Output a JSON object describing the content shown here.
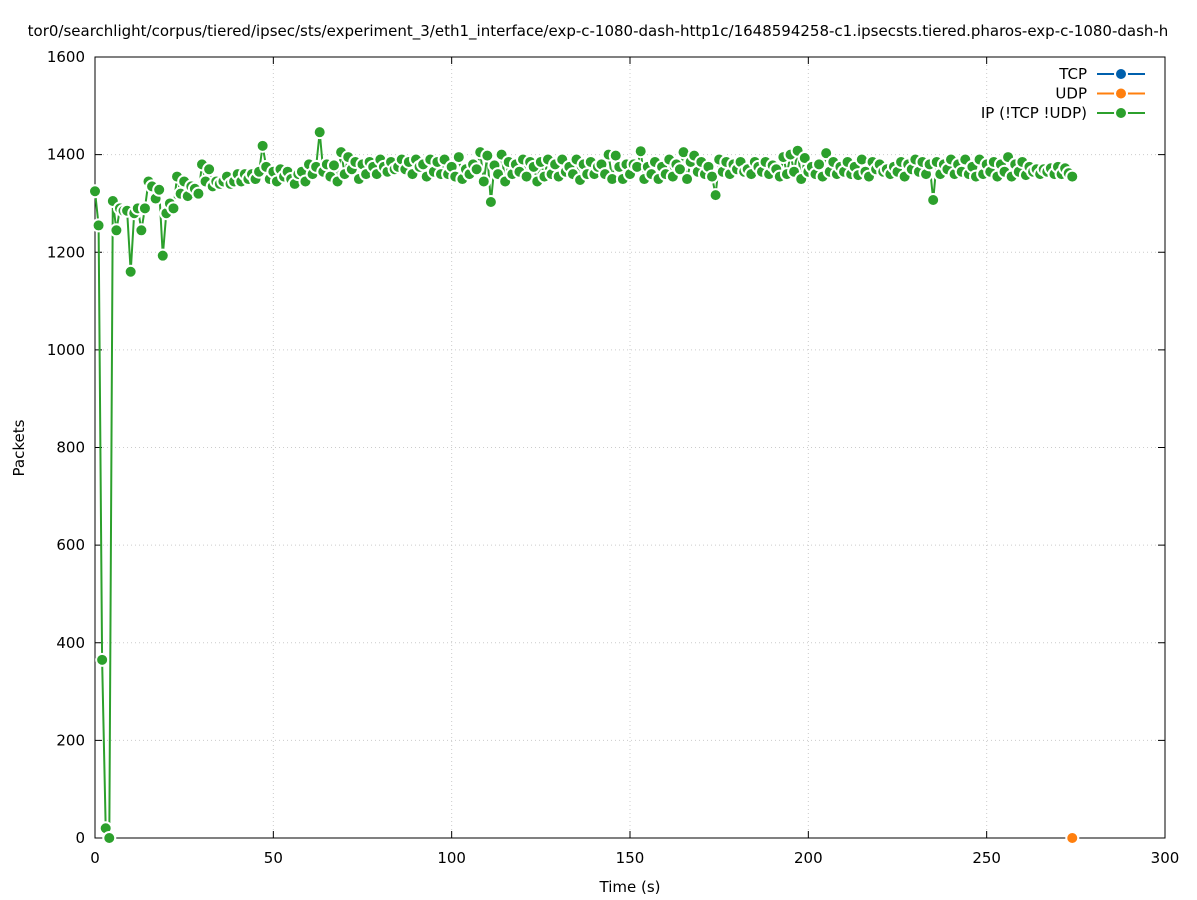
{
  "chart_data": {
    "type": "line",
    "title": "tor0/searchlight/corpus/tiered/ipsec/sts/experiment_3/eth1_interface/exp-c-1080-dash-http1c/1648594258-c1.ipsecsts.tiered.pharos-exp-c-1080-dash-h",
    "xlabel": "Time (s)",
    "ylabel": "Packets",
    "xlim": [
      0,
      300
    ],
    "ylim": [
      0,
      1600
    ],
    "x_ticks": [
      "0",
      "50",
      "100",
      "150",
      "200",
      "250",
      "300"
    ],
    "y_ticks": [
      "0",
      "200",
      "400",
      "600",
      "800",
      "1000",
      "1200",
      "1400",
      "1600"
    ],
    "grid": true,
    "legend_position": "top-right",
    "series": [
      {
        "name": "TCP",
        "color": "#0060ad",
        "points": []
      },
      {
        "name": "UDP",
        "color": "#ff7f0e",
        "points": [
          [
            274,
            0
          ]
        ]
      },
      {
        "name": "IP (!TCP  !UDP)",
        "color": "#2ca02c",
        "points": [
          [
            0,
            1325
          ],
          [
            1,
            1255
          ],
          [
            2,
            365
          ],
          [
            3,
            20
          ],
          [
            4,
            0
          ],
          [
            5,
            1305
          ],
          [
            6,
            1245
          ],
          [
            7,
            1290
          ],
          [
            8,
            1285
          ],
          [
            9,
            1285
          ],
          [
            10,
            1160
          ],
          [
            11,
            1280
          ],
          [
            12,
            1290
          ],
          [
            13,
            1245
          ],
          [
            14,
            1290
          ],
          [
            15,
            1345
          ],
          [
            16,
            1335
          ],
          [
            17,
            1310
          ],
          [
            18,
            1328
          ],
          [
            19,
            1193
          ],
          [
            20,
            1280
          ],
          [
            21,
            1300
          ],
          [
            22,
            1290
          ],
          [
            23,
            1355
          ],
          [
            24,
            1320
          ],
          [
            25,
            1345
          ],
          [
            26,
            1315
          ],
          [
            27,
            1335
          ],
          [
            28,
            1330
          ],
          [
            29,
            1320
          ],
          [
            30,
            1380
          ],
          [
            31,
            1345
          ],
          [
            32,
            1370
          ],
          [
            33,
            1335
          ],
          [
            34,
            1345
          ],
          [
            35,
            1340
          ],
          [
            36,
            1345
          ],
          [
            37,
            1355
          ],
          [
            38,
            1340
          ],
          [
            39,
            1345
          ],
          [
            40,
            1360
          ],
          [
            41,
            1345
          ],
          [
            42,
            1360
          ],
          [
            43,
            1350
          ],
          [
            44,
            1360
          ],
          [
            45,
            1350
          ],
          [
            46,
            1365
          ],
          [
            47,
            1418
          ],
          [
            48,
            1375
          ],
          [
            49,
            1350
          ],
          [
            50,
            1365
          ],
          [
            51,
            1345
          ],
          [
            52,
            1370
          ],
          [
            53,
            1355
          ],
          [
            54,
            1365
          ],
          [
            55,
            1350
          ],
          [
            56,
            1340
          ],
          [
            57,
            1360
          ],
          [
            58,
            1365
          ],
          [
            59,
            1345
          ],
          [
            60,
            1380
          ],
          [
            61,
            1360
          ],
          [
            62,
            1375
          ],
          [
            63,
            1446
          ],
          [
            64,
            1365
          ],
          [
            65,
            1380
          ],
          [
            66,
            1355
          ],
          [
            67,
            1378
          ],
          [
            68,
            1345
          ],
          [
            69,
            1405
          ],
          [
            70,
            1360
          ],
          [
            71,
            1395
          ],
          [
            72,
            1370
          ],
          [
            73,
            1385
          ],
          [
            74,
            1350
          ],
          [
            75,
            1380
          ],
          [
            76,
            1360
          ],
          [
            77,
            1385
          ],
          [
            78,
            1375
          ],
          [
            79,
            1360
          ],
          [
            80,
            1390
          ],
          [
            81,
            1375
          ],
          [
            82,
            1365
          ],
          [
            83,
            1385
          ],
          [
            84,
            1370
          ],
          [
            85,
            1375
          ],
          [
            86,
            1390
          ],
          [
            87,
            1370
          ],
          [
            88,
            1385
          ],
          [
            89,
            1360
          ],
          [
            90,
            1390
          ],
          [
            91,
            1375
          ],
          [
            92,
            1380
          ],
          [
            93,
            1355
          ],
          [
            94,
            1390
          ],
          [
            95,
            1365
          ],
          [
            96,
            1385
          ],
          [
            97,
            1360
          ],
          [
            98,
            1390
          ],
          [
            99,
            1360
          ],
          [
            100,
            1375
          ],
          [
            101,
            1355
          ],
          [
            102,
            1395
          ],
          [
            103,
            1350
          ],
          [
            104,
            1370
          ],
          [
            105,
            1360
          ],
          [
            106,
            1380
          ],
          [
            107,
            1370
          ],
          [
            108,
            1405
          ],
          [
            109,
            1345
          ],
          [
            110,
            1398
          ],
          [
            111,
            1303
          ],
          [
            112,
            1378
          ],
          [
            113,
            1360
          ],
          [
            114,
            1400
          ],
          [
            115,
            1345
          ],
          [
            116,
            1385
          ],
          [
            117,
            1360
          ],
          [
            118,
            1380
          ],
          [
            119,
            1365
          ],
          [
            120,
            1390
          ],
          [
            121,
            1355
          ],
          [
            122,
            1385
          ],
          [
            123,
            1375
          ],
          [
            124,
            1345
          ],
          [
            125,
            1385
          ],
          [
            126,
            1355
          ],
          [
            127,
            1390
          ],
          [
            128,
            1360
          ],
          [
            129,
            1380
          ],
          [
            130,
            1355
          ],
          [
            131,
            1390
          ],
          [
            132,
            1365
          ],
          [
            133,
            1375
          ],
          [
            134,
            1360
          ],
          [
            135,
            1390
          ],
          [
            136,
            1348
          ],
          [
            137,
            1380
          ],
          [
            138,
            1360
          ],
          [
            139,
            1385
          ],
          [
            140,
            1360
          ],
          [
            141,
            1375
          ],
          [
            142,
            1380
          ],
          [
            143,
            1360
          ],
          [
            144,
            1400
          ],
          [
            145,
            1350
          ],
          [
            146,
            1398
          ],
          [
            147,
            1375
          ],
          [
            148,
            1350
          ],
          [
            149,
            1380
          ],
          [
            150,
            1360
          ],
          [
            151,
            1380
          ],
          [
            152,
            1375
          ],
          [
            153,
            1407
          ],
          [
            154,
            1350
          ],
          [
            155,
            1375
          ],
          [
            156,
            1360
          ],
          [
            157,
            1385
          ],
          [
            158,
            1350
          ],
          [
            159,
            1375
          ],
          [
            160,
            1360
          ],
          [
            161,
            1390
          ],
          [
            162,
            1355
          ],
          [
            163,
            1380
          ],
          [
            164,
            1370
          ],
          [
            165,
            1405
          ],
          [
            166,
            1350
          ],
          [
            167,
            1385
          ],
          [
            168,
            1398
          ],
          [
            169,
            1365
          ],
          [
            170,
            1385
          ],
          [
            171,
            1360
          ],
          [
            172,
            1375
          ],
          [
            173,
            1355
          ],
          [
            174,
            1317
          ],
          [
            175,
            1390
          ],
          [
            176,
            1365
          ],
          [
            177,
            1385
          ],
          [
            178,
            1360
          ],
          [
            179,
            1380
          ],
          [
            180,
            1370
          ],
          [
            181,
            1385
          ],
          [
            182,
            1365
          ],
          [
            183,
            1370
          ],
          [
            184,
            1360
          ],
          [
            185,
            1385
          ],
          [
            186,
            1375
          ],
          [
            187,
            1365
          ],
          [
            188,
            1385
          ],
          [
            189,
            1360
          ],
          [
            190,
            1378
          ],
          [
            191,
            1370
          ],
          [
            192,
            1355
          ],
          [
            193,
            1395
          ],
          [
            194,
            1360
          ],
          [
            195,
            1400
          ],
          [
            196,
            1365
          ],
          [
            197,
            1408
          ],
          [
            198,
            1350
          ],
          [
            199,
            1393
          ],
          [
            200,
            1365
          ],
          [
            201,
            1375
          ],
          [
            202,
            1360
          ],
          [
            203,
            1380
          ],
          [
            204,
            1355
          ],
          [
            205,
            1403
          ],
          [
            206,
            1365
          ],
          [
            207,
            1385
          ],
          [
            208,
            1360
          ],
          [
            209,
            1375
          ],
          [
            210,
            1365
          ],
          [
            211,
            1385
          ],
          [
            212,
            1360
          ],
          [
            213,
            1375
          ],
          [
            214,
            1358
          ],
          [
            215,
            1390
          ],
          [
            216,
            1365
          ],
          [
            217,
            1355
          ],
          [
            218,
            1385
          ],
          [
            219,
            1370
          ],
          [
            220,
            1380
          ],
          [
            221,
            1365
          ],
          [
            222,
            1370
          ],
          [
            223,
            1360
          ],
          [
            224,
            1375
          ],
          [
            225,
            1365
          ],
          [
            226,
            1385
          ],
          [
            227,
            1355
          ],
          [
            228,
            1380
          ],
          [
            229,
            1370
          ],
          [
            230,
            1390
          ],
          [
            231,
            1365
          ],
          [
            232,
            1385
          ],
          [
            233,
            1360
          ],
          [
            234,
            1380
          ],
          [
            235,
            1307
          ],
          [
            236,
            1385
          ],
          [
            237,
            1360
          ],
          [
            238,
            1380
          ],
          [
            239,
            1370
          ],
          [
            240,
            1390
          ],
          [
            241,
            1360
          ],
          [
            242,
            1380
          ],
          [
            243,
            1365
          ],
          [
            244,
            1390
          ],
          [
            245,
            1360
          ],
          [
            246,
            1375
          ],
          [
            247,
            1355
          ],
          [
            248,
            1390
          ],
          [
            249,
            1360
          ],
          [
            250,
            1380
          ],
          [
            251,
            1365
          ],
          [
            252,
            1385
          ],
          [
            253,
            1355
          ],
          [
            254,
            1380
          ],
          [
            255,
            1365
          ],
          [
            256,
            1395
          ],
          [
            257,
            1355
          ],
          [
            258,
            1380
          ],
          [
            259,
            1365
          ],
          [
            260,
            1385
          ],
          [
            261,
            1358
          ],
          [
            262,
            1375
          ],
          [
            263,
            1365
          ],
          [
            264,
            1370
          ],
          [
            265,
            1360
          ],
          [
            266,
            1370
          ],
          [
            267,
            1365
          ],
          [
            268,
            1372
          ],
          [
            269,
            1360
          ],
          [
            270,
            1375
          ],
          [
            271,
            1360
          ],
          [
            272,
            1372
          ],
          [
            273,
            1362
          ],
          [
            274,
            1355
          ]
        ]
      }
    ]
  }
}
